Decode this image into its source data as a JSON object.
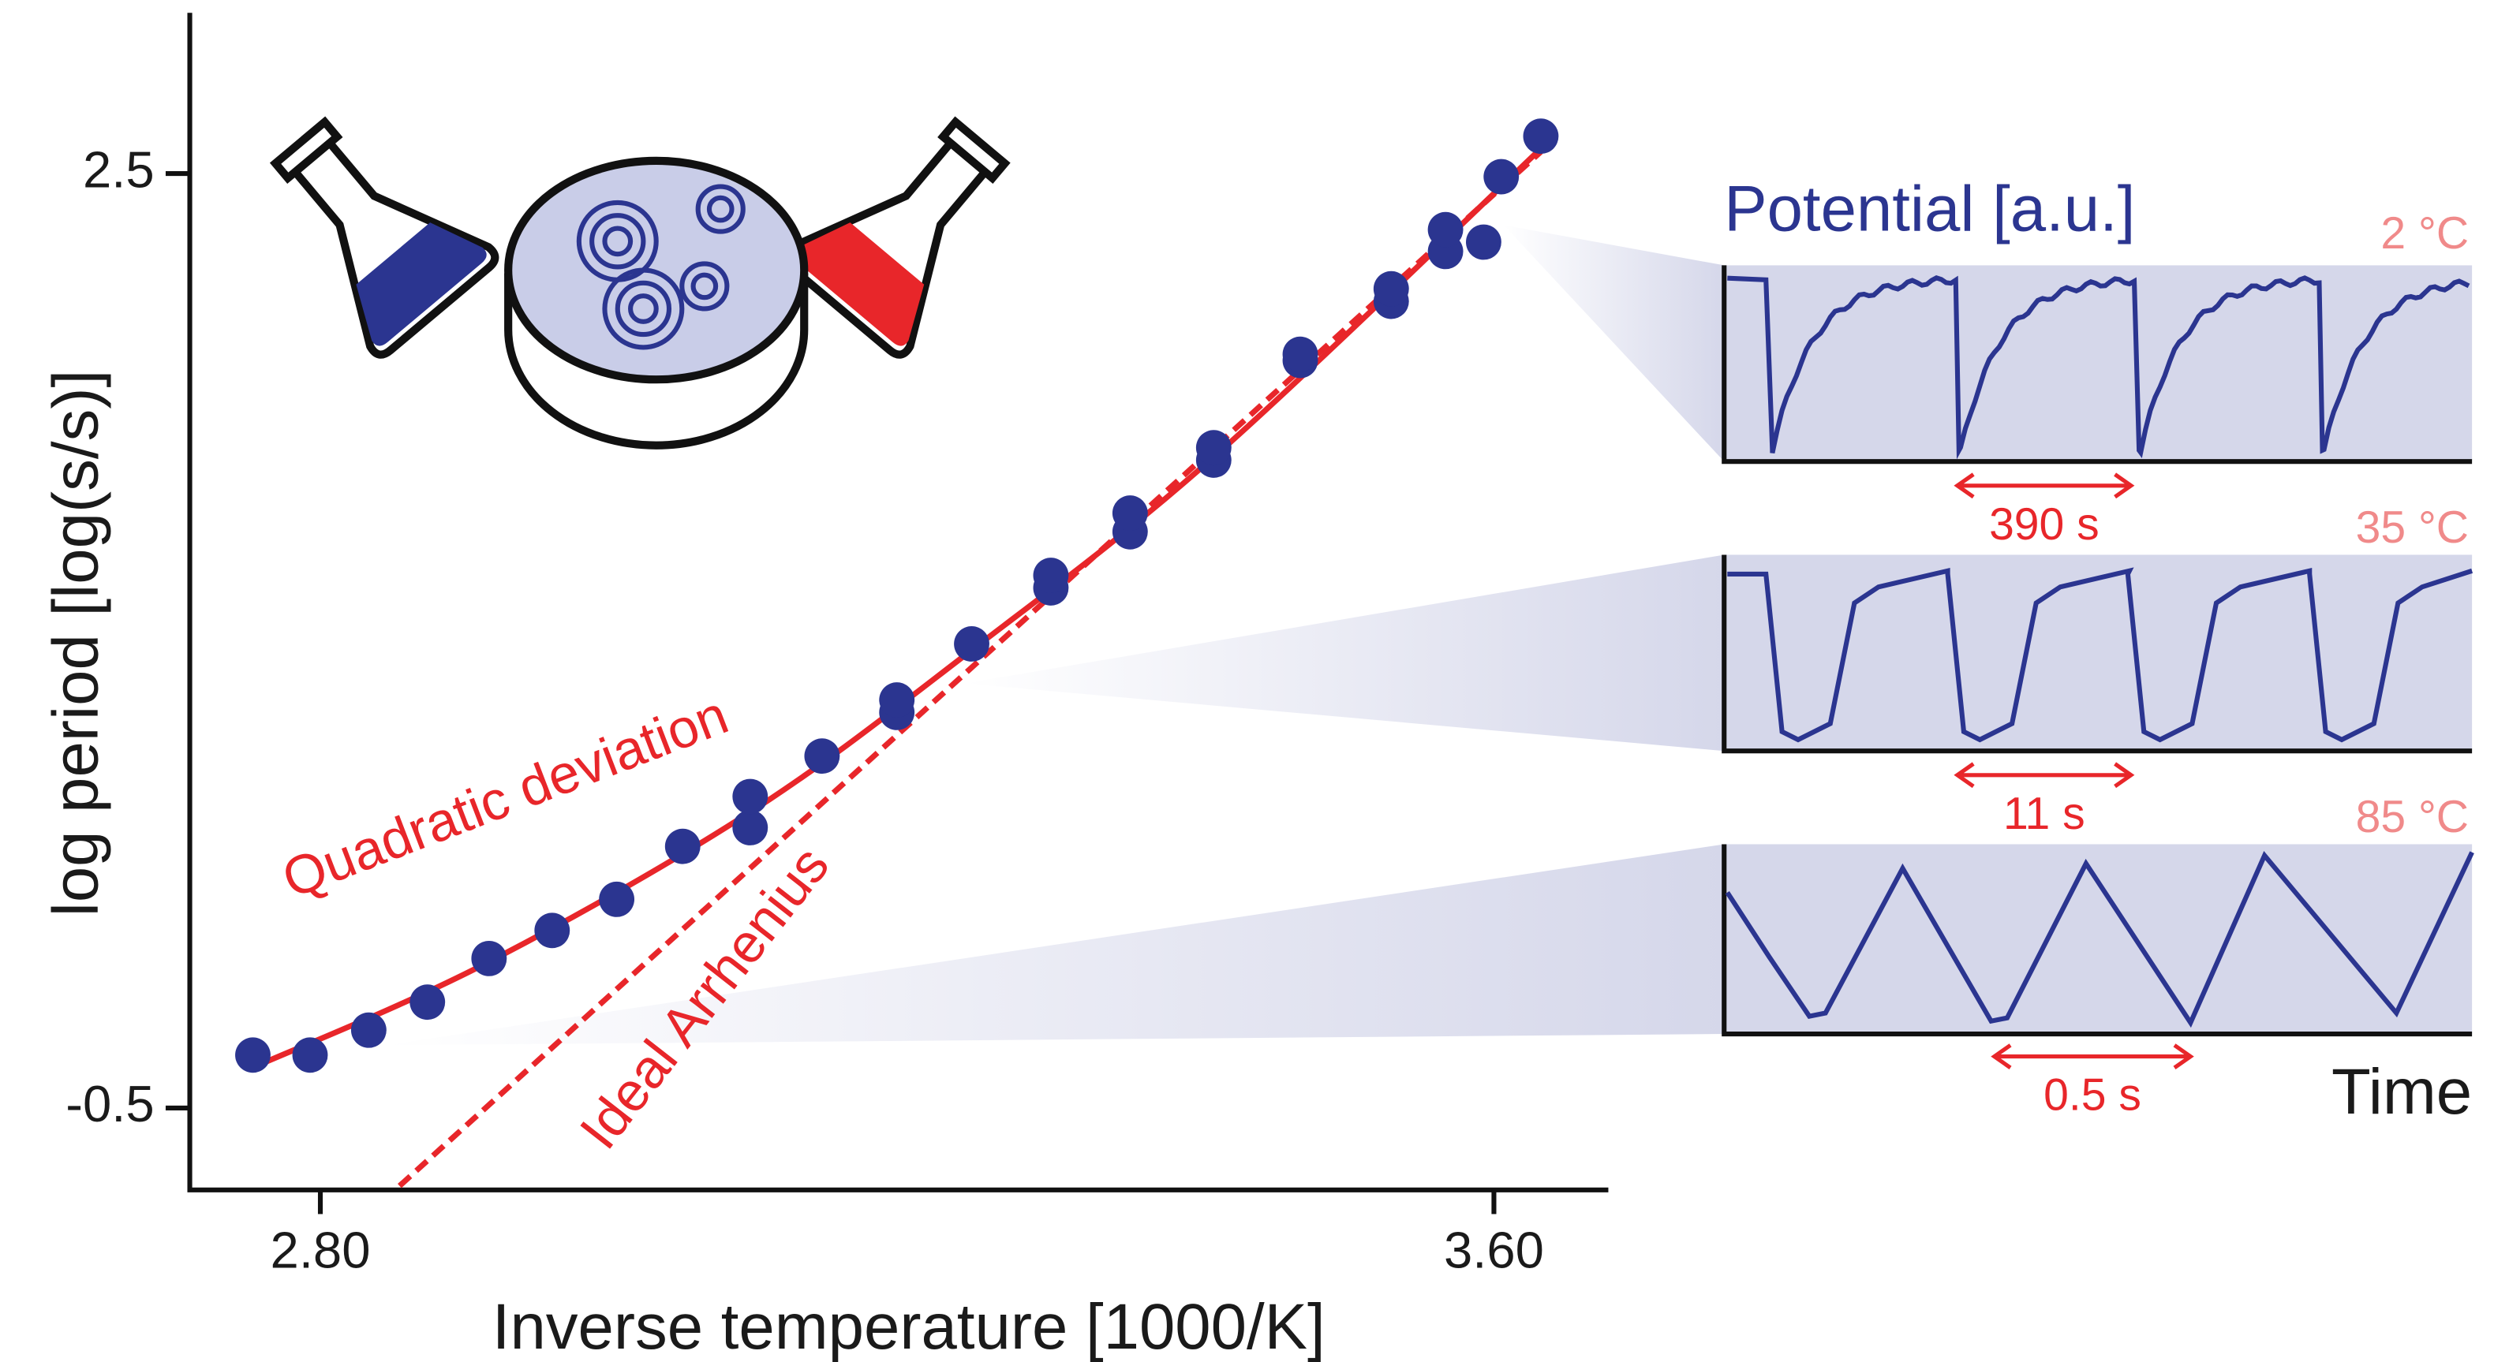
{
  "chart_data": {
    "type": "scatter",
    "xlabel": "Inverse temperature [1000/K]",
    "ylabel": "log period [log(s/s)]",
    "xlim": [
      2.711,
      3.678
    ],
    "ylim": [
      -0.763,
      3.016
    ],
    "xticks": [
      {
        "value": 2.8,
        "label": "2.80"
      },
      {
        "value": 3.6,
        "label": "3.60"
      }
    ],
    "yticks": [
      2.5,
      -0.5
    ],
    "points": {
      "color": "#2b3590",
      "x": [
        2.754,
        2.793,
        2.833,
        2.873,
        2.915,
        2.958,
        3.002,
        3.047,
        3.093,
        3.093,
        3.142,
        3.193,
        3.193,
        3.244,
        3.298,
        3.298,
        3.352,
        3.352,
        3.409,
        3.409,
        3.468,
        3.468,
        3.53,
        3.53,
        3.567,
        3.567,
        3.593,
        3.605,
        3.632
      ],
      "y": [
        -0.33,
        -0.33,
        -0.25,
        -0.16,
        -0.02,
        0.07,
        0.17,
        0.34,
        0.4,
        0.5,
        0.63,
        0.77,
        0.81,
        0.99,
        1.17,
        1.21,
        1.35,
        1.41,
        1.58,
        1.62,
        1.9,
        1.92,
        2.09,
        2.13,
        2.25,
        2.32,
        2.28,
        2.49,
        2.62
      ]
    },
    "fit_lines": [
      {
        "label": "Quadratic deviation",
        "color": "#e8262a",
        "dashed": false,
        "x": [
          2.754,
          2.911,
          3.093,
          3.244,
          3.409,
          3.632
        ],
        "y": [
          -0.37,
          -0.04,
          0.45,
          0.97,
          1.59,
          2.58
        ]
      },
      {
        "label": "Ideal Arrhenius",
        "color": "#e8262a",
        "dashed": true,
        "x": [
          2.854,
          3.632
        ],
        "y": [
          -0.75,
          2.57
        ]
      }
    ],
    "inset_ylabel": "Potential [a.u.]",
    "inset_xlabel": "Time",
    "insets": [
      {
        "temperature": "2 °C",
        "period": "390 s"
      },
      {
        "temperature": "35 °C",
        "period": "11 s"
      },
      {
        "temperature": "85 °C",
        "period": "0.5 s"
      }
    ]
  }
}
